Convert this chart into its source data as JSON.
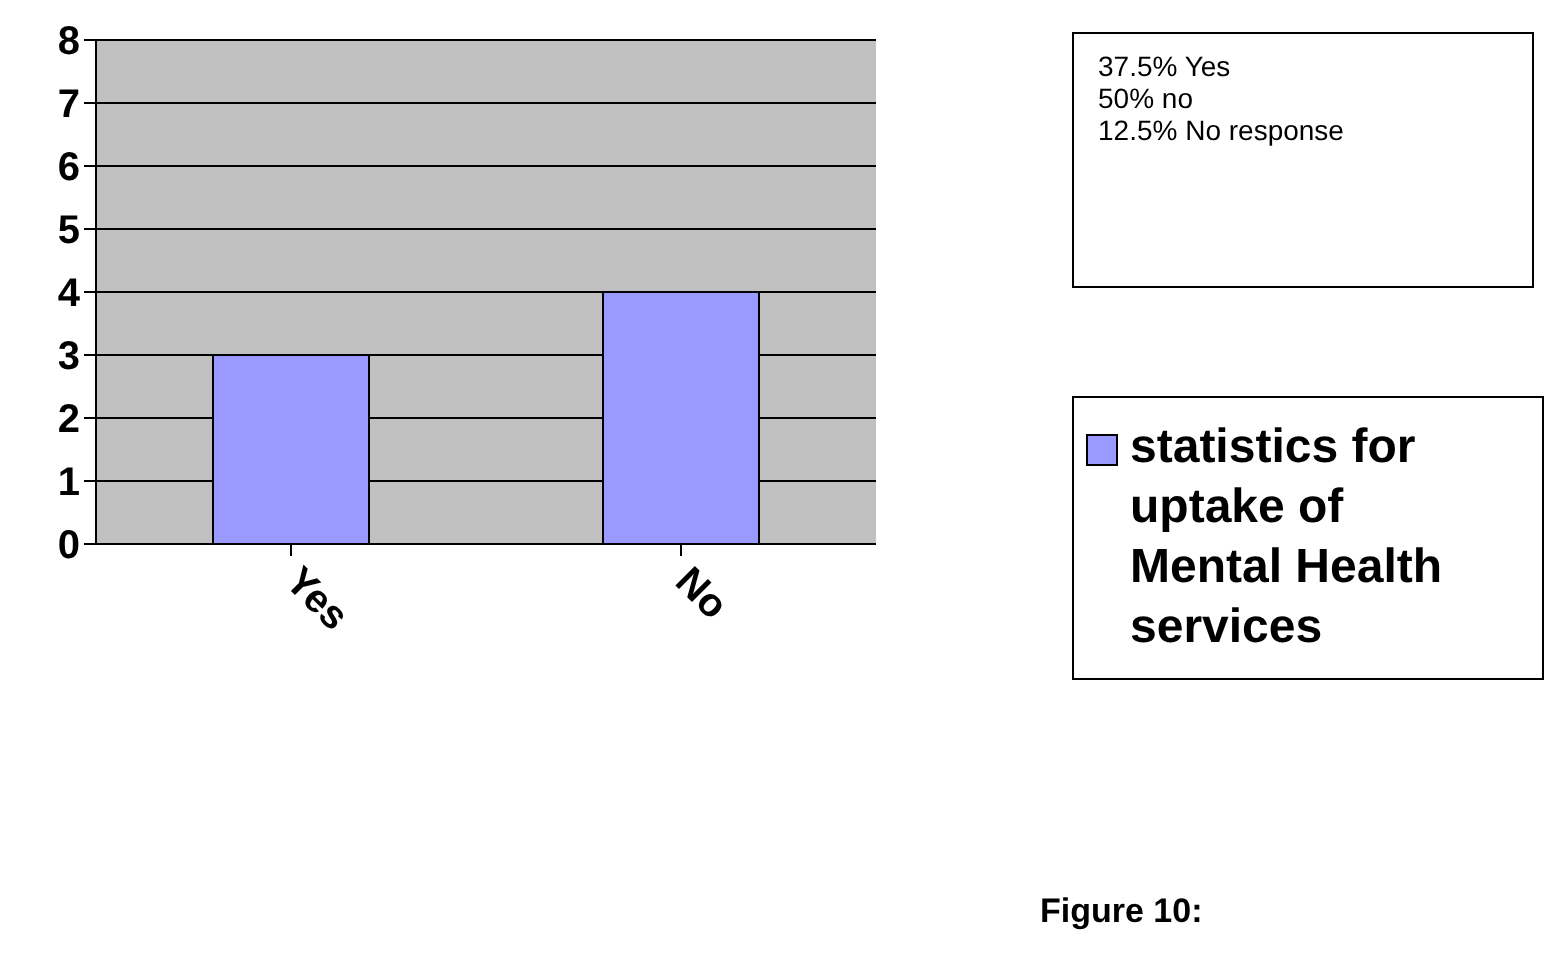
{
  "chart_data": {
    "type": "bar",
    "categories": [
      "Yes",
      "No"
    ],
    "series": [
      {
        "name": "statistics for uptake of Mental Health services",
        "color": "#9999ff",
        "values": [
          3,
          4
        ]
      }
    ],
    "ylim": [
      0,
      8
    ],
    "yticks": [
      0,
      1,
      2,
      3,
      4,
      5,
      6,
      7,
      8
    ],
    "grid": "y",
    "legend": "right",
    "annotations": [
      "37.5% Yes",
      "50% no",
      "12.5% No response",
      "Figure 10:"
    ]
  }
}
